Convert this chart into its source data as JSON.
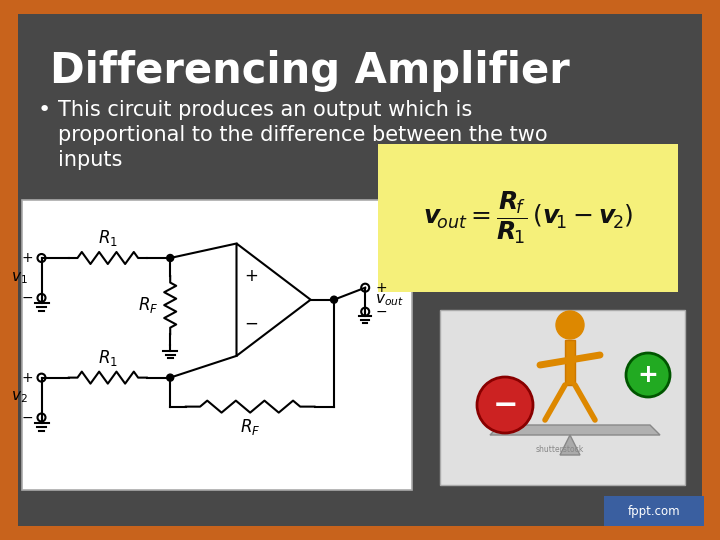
{
  "title": "Differencing Amplifier",
  "bullet_line1": "This circuit produces an output which is",
  "bullet_line2": "proportional to the difference between the two",
  "bullet_line3": "inputs",
  "background_outer": "#c8631c",
  "background_inner": "#464646",
  "title_color": "#ffffff",
  "bullet_color": "#ffffff",
  "formula_bg": "#f5f07a",
  "circuit_bg": "#ffffff",
  "fppt_text": "fppt.com",
  "fppt_bg": "#3a5fa0",
  "fppt_color": "#ffffff"
}
